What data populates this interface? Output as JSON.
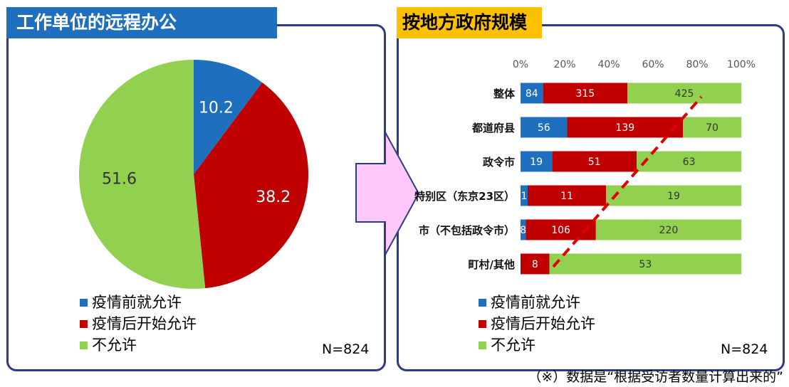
{
  "colors": {
    "blue": "#1f6fbf",
    "red": "#c00000",
    "green": "#92d050",
    "panel_border": "#2e3a8c",
    "title_left_bg": "#1f6fbf",
    "title_right_bg": "#ffc000",
    "trend_line": "#e00000",
    "arrow_fill": "#ffc8f8",
    "arrow_stroke": "#2e3a8c"
  },
  "left_title": "工作单位的远程办公",
  "right_title": "按地方政府规模",
  "legend": [
    "疫情前就允许",
    "疫情后开始允许",
    "不允许"
  ],
  "n_label": "N=824",
  "footnote": "（※）数据是“根据受访者数量计算出来的”",
  "chart_data": [
    {
      "type": "pie",
      "labels": [
        "疫情前就允许",
        "疫情后开始允许",
        "不允许"
      ],
      "values": [
        10.2,
        38.2,
        51.6
      ],
      "value_labels": [
        "10.2",
        "38.2",
        "51.6"
      ],
      "colors": [
        "#1f6fbf",
        "#c00000",
        "#92d050"
      ]
    },
    {
      "type": "bar",
      "orientation": "horizontal",
      "stacked": "percent",
      "categories": [
        "整体",
        "都道府县",
        "政令市",
        "特别区（东京23区）",
        "市（不包括政令市）",
        "町村/其他"
      ],
      "series": [
        {
          "name": "疫情前就允许",
          "values": [
            84,
            56,
            19,
            1,
            8,
            0
          ],
          "labels": [
            "84",
            "56",
            "19",
            "1",
            "8",
            ""
          ]
        },
        {
          "name": "疫情后开始允许",
          "values": [
            315,
            139,
            51,
            11,
            106,
            8
          ],
          "labels": [
            "315",
            "139",
            "51",
            "11",
            "106",
            "8"
          ]
        },
        {
          "name": "不允许",
          "values": [
            425,
            70,
            63,
            19,
            220,
            53
          ],
          "labels": [
            "425",
            "70",
            "63",
            "19",
            "220",
            "53"
          ]
        }
      ],
      "xaxis_ticks": [
        "0%",
        "20%",
        "40%",
        "60%",
        "80%",
        "100%"
      ],
      "xlim": [
        0,
        100
      ],
      "annotation": "red dashed diagonal trend line"
    }
  ]
}
